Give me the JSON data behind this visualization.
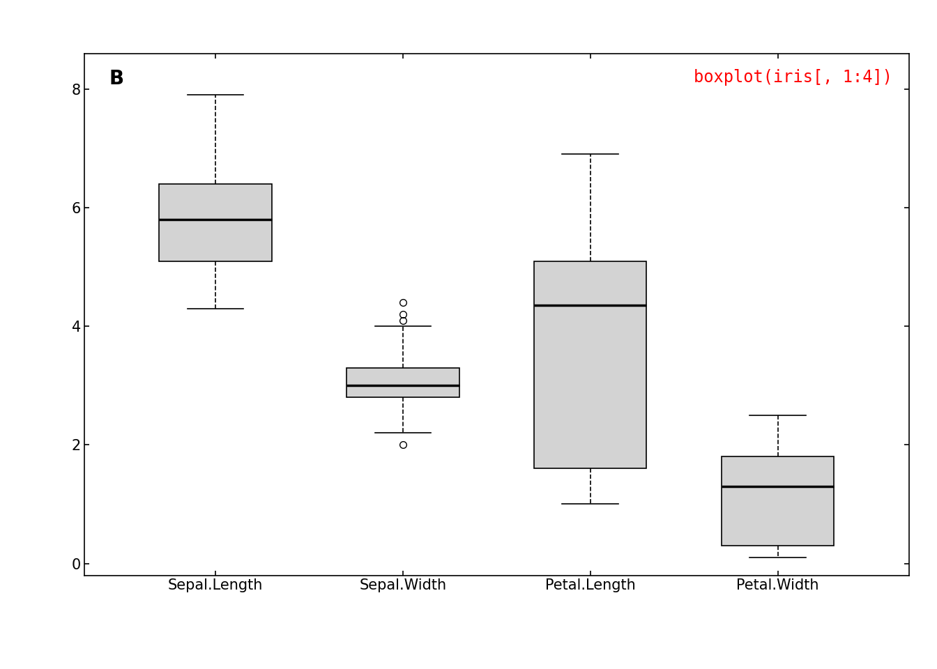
{
  "title_code": "boxplot(iris[, 1:4])",
  "panel_label": "B",
  "categories": [
    "Sepal.Length",
    "Sepal.Width",
    "Petal.Length",
    "Petal.Width"
  ],
  "box_color": "#d3d3d3",
  "box_stats": [
    {
      "name": "Sepal.Length",
      "q1": 5.1,
      "median": 5.8,
      "q3": 6.4,
      "whislo": 4.3,
      "whishi": 7.9,
      "fliers": []
    },
    {
      "name": "Sepal.Width",
      "q1": 2.8,
      "median": 3.0,
      "q3": 3.3,
      "whislo": 2.2,
      "whishi": 4.0,
      "fliers": [
        4.1,
        4.2,
        4.4,
        2.0
      ]
    },
    {
      "name": "Petal.Length",
      "q1": 1.6,
      "median": 4.35,
      "q3": 5.1,
      "whislo": 1.0,
      "whishi": 6.9,
      "fliers": []
    },
    {
      "name": "Petal.Width",
      "q1": 0.3,
      "median": 1.3,
      "q3": 1.8,
      "whislo": 0.1,
      "whishi": 2.5,
      "fliers": []
    }
  ],
  "ylim": [
    -0.2,
    8.6
  ],
  "yticks": [
    0,
    2,
    4,
    6,
    8
  ],
  "background_color": "#ffffff",
  "annotation_color": "#ff0000",
  "annotation_fontsize": 17,
  "panel_label_fontsize": 20,
  "tick_label_fontsize": 15,
  "axis_label_fontsize": 15
}
